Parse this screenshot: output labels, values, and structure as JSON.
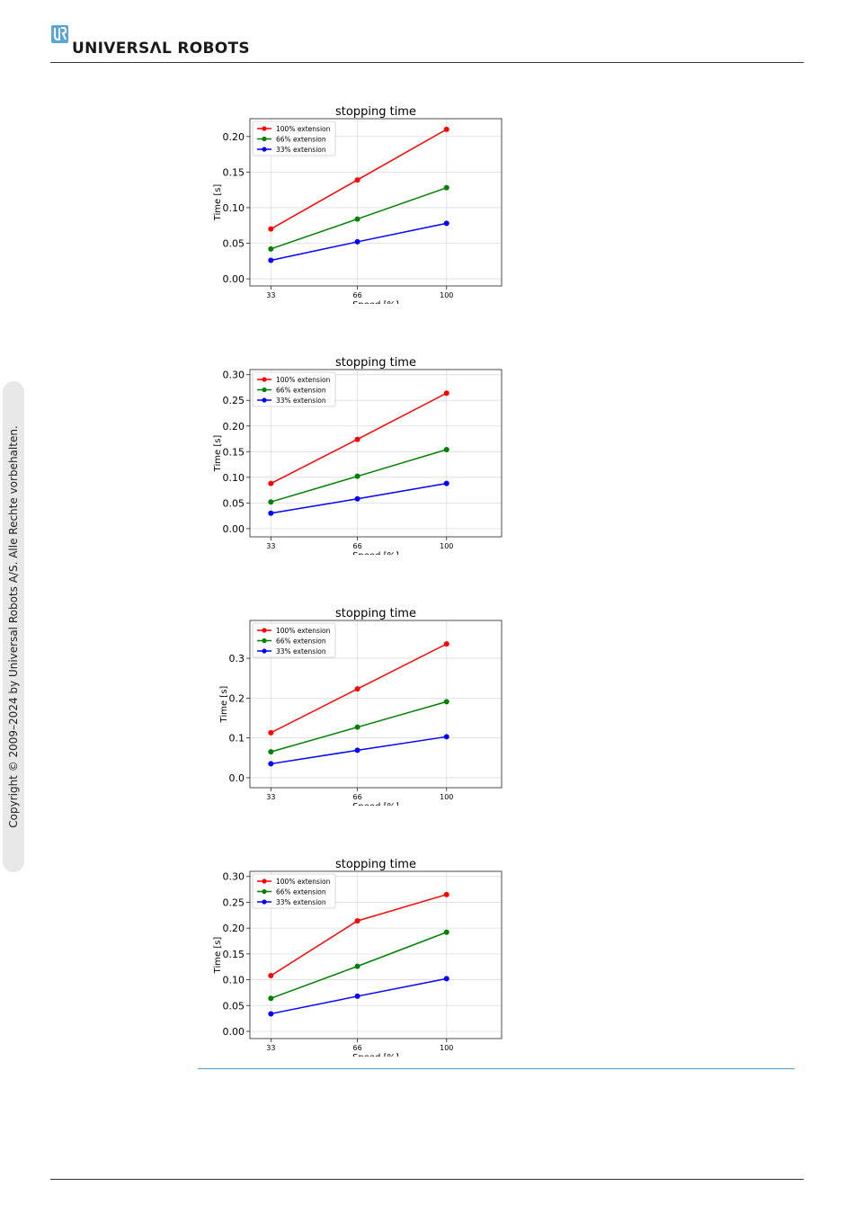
{
  "header": {
    "brand_text": "UNIVERSΛL ROBOTS",
    "logo_icon": "ur-logo-icon"
  },
  "sidebar": {
    "copyright": "Copyright © 2009–2024 by Universal Robots A/S. Alle Rechte vorbehalten."
  },
  "colors": {
    "red": "#ff0000",
    "green": "#008000",
    "blue": "#0000ff",
    "accent": "#4a9fd6"
  },
  "chart_data": [
    {
      "type": "line",
      "title": "stopping time",
      "xlabel": "Speed [%]",
      "ylabel": "Time [s]",
      "x": [
        33,
        66,
        100
      ],
      "xticks": [
        "33",
        "66",
        "100"
      ],
      "ylim": [
        -0.01,
        0.225
      ],
      "yticks": [
        "0.00",
        "0.05",
        "0.10",
        "0.15",
        "0.20"
      ],
      "ytick_values": [
        0,
        0.05,
        0.1,
        0.15,
        0.2
      ],
      "grid": true,
      "legend_position": "upper-left",
      "series": [
        {
          "name": "100% extension",
          "color": "#ff0000",
          "values": [
            0.07,
            0.139,
            0.21
          ]
        },
        {
          "name": "66% extension",
          "color": "#008000",
          "values": [
            0.042,
            0.084,
            0.128
          ]
        },
        {
          "name": "33% extension",
          "color": "#0000ff",
          "values": [
            0.026,
            0.052,
            0.078
          ]
        }
      ]
    },
    {
      "type": "line",
      "title": "stopping time",
      "xlabel": "Speed [%]",
      "ylabel": "Time [s]",
      "x": [
        33,
        66,
        100
      ],
      "xticks": [
        "33",
        "66",
        "100"
      ],
      "ylim": [
        -0.016,
        0.31
      ],
      "yticks": [
        "0.00",
        "0.05",
        "0.10",
        "0.15",
        "0.20",
        "0.25",
        "0.30"
      ],
      "ytick_values": [
        0,
        0.05,
        0.1,
        0.15,
        0.2,
        0.25,
        0.3
      ],
      "grid": true,
      "legend_position": "upper-left",
      "series": [
        {
          "name": "100% extension",
          "color": "#ff0000",
          "values": [
            0.088,
            0.174,
            0.264
          ]
        },
        {
          "name": "66% extension",
          "color": "#008000",
          "values": [
            0.052,
            0.102,
            0.154
          ]
        },
        {
          "name": "33% extension",
          "color": "#0000ff",
          "values": [
            0.03,
            0.058,
            0.088
          ]
        }
      ]
    },
    {
      "type": "line",
      "title": "stopping time",
      "xlabel": "Speed [%]",
      "ylabel": "Time [s]",
      "x": [
        33,
        66,
        100
      ],
      "xticks": [
        "33",
        "66",
        "100"
      ],
      "ylim": [
        -0.025,
        0.395
      ],
      "yticks": [
        "0.0",
        "0.1",
        "0.2",
        "0.3"
      ],
      "ytick_values": [
        0,
        0.1,
        0.2,
        0.3
      ],
      "grid": true,
      "legend_position": "upper-left",
      "series": [
        {
          "name": "100% extension",
          "color": "#ff0000",
          "values": [
            0.113,
            0.223,
            0.336
          ]
        },
        {
          "name": "66% extension",
          "color": "#008000",
          "values": [
            0.065,
            0.127,
            0.191
          ]
        },
        {
          "name": "33% extension",
          "color": "#0000ff",
          "values": [
            0.035,
            0.069,
            0.103
          ]
        }
      ]
    },
    {
      "type": "line",
      "title": "stopping time",
      "xlabel": "Speed [%]",
      "ylabel": "Time [s]",
      "x": [
        33,
        66,
        100
      ],
      "xticks": [
        "33",
        "66",
        "100"
      ],
      "ylim": [
        -0.014,
        0.31
      ],
      "yticks": [
        "0.00",
        "0.05",
        "0.10",
        "0.15",
        "0.20",
        "0.25",
        "0.30"
      ],
      "ytick_values": [
        0,
        0.05,
        0.1,
        0.15,
        0.2,
        0.25,
        0.3
      ],
      "grid": true,
      "legend_position": "upper-left",
      "series": [
        {
          "name": "100% extension",
          "color": "#ff0000",
          "values": [
            0.108,
            0.214,
            0.265
          ]
        },
        {
          "name": "66% extension",
          "color": "#008000",
          "values": [
            0.064,
            0.126,
            0.192
          ]
        },
        {
          "name": "33% extension",
          "color": "#0000ff",
          "values": [
            0.034,
            0.068,
            0.102
          ]
        }
      ]
    }
  ]
}
